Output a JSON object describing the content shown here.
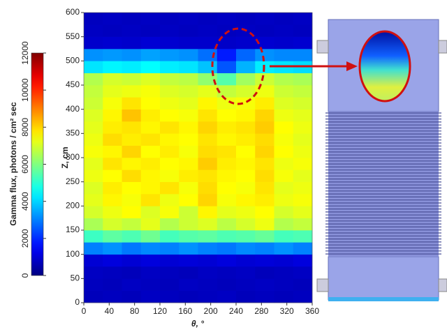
{
  "chart_data": {
    "type": "heatmap",
    "xlabel": "θ, °",
    "ylabel": "Z, cm",
    "colorbar_label": "Gamma flux, photons / cm² sec",
    "colormap": "jet",
    "xlim": [
      0,
      360
    ],
    "xticks": [
      0,
      40,
      80,
      120,
      160,
      200,
      240,
      280,
      320,
      360
    ],
    "ylim": [
      0,
      600
    ],
    "yticks": [
      0,
      50,
      100,
      150,
      200,
      250,
      300,
      350,
      400,
      450,
      500,
      550,
      600
    ],
    "clim": [
      0,
      12000
    ],
    "cticks": [
      0,
      2000,
      4000,
      6000,
      8000,
      10000,
      12000
    ],
    "xbins": [
      0,
      30,
      60,
      90,
      120,
      150,
      180,
      210,
      240,
      270,
      300,
      330,
      360
    ],
    "ybins": [
      0,
      25,
      50,
      75,
      100,
      125,
      150,
      175,
      200,
      225,
      250,
      275,
      300,
      325,
      350,
      375,
      400,
      425,
      450,
      475,
      500,
      525,
      550,
      575,
      600
    ],
    "values": [
      [
        700,
        750,
        700,
        800,
        750,
        700,
        750,
        800,
        700,
        750,
        700,
        750
      ],
      [
        750,
        700,
        800,
        750,
        700,
        800,
        750,
        700,
        750,
        800,
        750,
        700
      ],
      [
        800,
        750,
        700,
        800,
        750,
        700,
        800,
        750,
        800,
        700,
        750,
        800
      ],
      [
        1000,
        1100,
        1000,
        1100,
        1000,
        1050,
        1000,
        1100,
        1000,
        1050,
        1000,
        1100
      ],
      [
        3000,
        3200,
        2900,
        3100,
        3000,
        3200,
        3000,
        2900,
        3100,
        3000,
        3200,
        3000
      ],
      [
        5200,
        5600,
        5400,
        5800,
        5300,
        5500,
        5600,
        5400,
        5500,
        5700,
        5300,
        5400
      ],
      [
        6500,
        7000,
        6800,
        7200,
        6600,
        6900,
        7100,
        6700,
        7000,
        7300,
        6600,
        6800
      ],
      [
        7000,
        7300,
        7500,
        7100,
        7400,
        6900,
        7600,
        7200,
        7300,
        7500,
        7000,
        7200
      ],
      [
        7200,
        7600,
        7400,
        7800,
        7300,
        7500,
        8000,
        7400,
        7600,
        7700,
        7300,
        7400
      ],
      [
        7100,
        7700,
        7500,
        7600,
        7800,
        7400,
        7900,
        7500,
        7400,
        7800,
        7200,
        7300
      ],
      [
        7300,
        7500,
        7900,
        7600,
        7400,
        7700,
        7800,
        7600,
        7500,
        7900,
        7400,
        7200
      ],
      [
        7200,
        7800,
        7600,
        7700,
        7500,
        7600,
        8100,
        7700,
        7600,
        7800,
        7300,
        7400
      ],
      [
        7400,
        7600,
        8000,
        7500,
        7700,
        7400,
        7900,
        7800,
        7500,
        8000,
        7500,
        7300
      ],
      [
        7300,
        7900,
        7700,
        7800,
        7600,
        7500,
        7800,
        7600,
        7700,
        7900,
        7400,
        7200
      ],
      [
        7200,
        7700,
        7800,
        7600,
        7800,
        7600,
        8000,
        7700,
        7800,
        8100,
        7500,
        7300
      ],
      [
        7100,
        7600,
        8200,
        7700,
        7500,
        7400,
        7800,
        7500,
        7600,
        8000,
        7300,
        7200
      ],
      [
        6900,
        7400,
        7800,
        7500,
        7300,
        7200,
        7600,
        7300,
        7400,
        7700,
        7100,
        7000
      ],
      [
        6800,
        7200,
        7300,
        7400,
        7100,
        7000,
        7200,
        6800,
        7000,
        7300,
        6900,
        6800
      ],
      [
        6600,
        7000,
        6900,
        7100,
        6800,
        6700,
        6200,
        5500,
        6400,
        6900,
        6600,
        6500
      ],
      [
        4200,
        4400,
        4300,
        4500,
        4300,
        4200,
        3800,
        2500,
        3600,
        4300,
        4200,
        4100
      ],
      [
        3200,
        3300,
        3200,
        3400,
        3300,
        3200,
        2800,
        1800,
        2700,
        3200,
        3100,
        3100
      ],
      [
        900,
        950,
        900,
        1000,
        950,
        900,
        900,
        850,
        900,
        950,
        900,
        950
      ],
      [
        800,
        750,
        800,
        750,
        800,
        750,
        800,
        750,
        800,
        750,
        800,
        750
      ],
      [
        750,
        800,
        750,
        800,
        750,
        800,
        750,
        800,
        750,
        800,
        750,
        800
      ]
    ]
  }
}
